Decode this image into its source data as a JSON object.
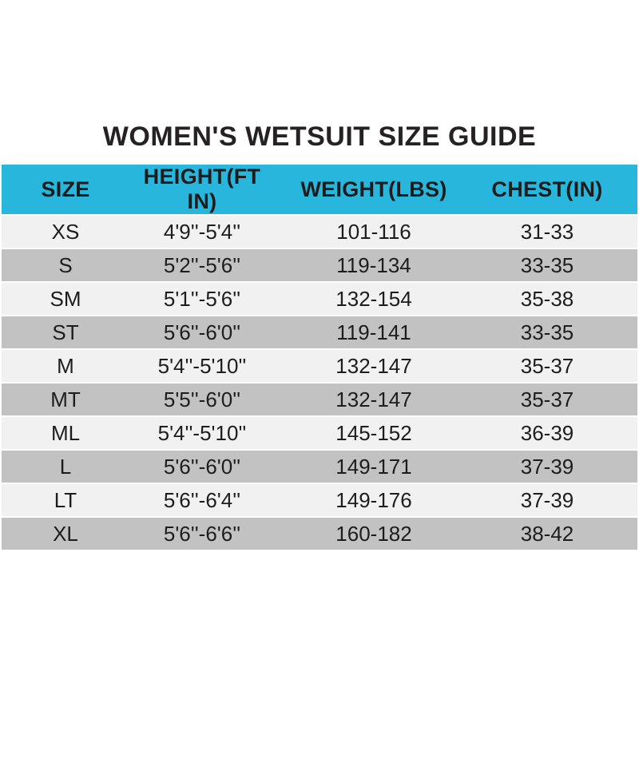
{
  "title": "WOMEN'S WETSUIT SIZE GUIDE",
  "colors": {
    "header_bg": "#29B6DC",
    "row_light": "#F1F1F1",
    "row_dark": "#C2C2C3",
    "text": "#1d1d1d",
    "page_bg": "#ffffff"
  },
  "table": {
    "columns": [
      "SIZE",
      "HEIGHT(FT IN)",
      "WEIGHT(LBS)",
      "CHEST(IN)"
    ],
    "rows": [
      {
        "size": "XS",
        "height": "4'9''-5'4''",
        "weight": "101-116",
        "chest": "31-33"
      },
      {
        "size": "S",
        "height": "5'2''-5'6''",
        "weight": "119-134",
        "chest": "33-35"
      },
      {
        "size": "SM",
        "height": "5'1''-5'6''",
        "weight": "132-154",
        "chest": "35-38"
      },
      {
        "size": "ST",
        "height": "5'6''-6'0''",
        "weight": "119-141",
        "chest": "33-35"
      },
      {
        "size": "M",
        "height": "5'4''-5'10''",
        "weight": "132-147",
        "chest": "35-37"
      },
      {
        "size": "MT",
        "height": "5'5''-6'0''",
        "weight": "132-147",
        "chest": "35-37"
      },
      {
        "size": "ML",
        "height": "5'4''-5'10''",
        "weight": "145-152",
        "chest": "36-39"
      },
      {
        "size": "L",
        "height": "5'6''-6'0''",
        "weight": "149-171",
        "chest": "37-39"
      },
      {
        "size": "LT",
        "height": "5'6''-6'4''",
        "weight": "149-176",
        "chest": "37-39"
      },
      {
        "size": "XL",
        "height": "5'6''-6'6''",
        "weight": "160-182",
        "chest": "38-42"
      }
    ]
  },
  "chart_data": {
    "type": "table",
    "title": "WOMEN'S WETSUIT SIZE GUIDE",
    "columns": [
      "SIZE",
      "HEIGHT(FT IN)",
      "WEIGHT(LBS)",
      "CHEST(IN)"
    ],
    "rows": [
      [
        "XS",
        "4'9''-5'4''",
        "101-116",
        "31-33"
      ],
      [
        "S",
        "5'2''-5'6''",
        "119-134",
        "33-35"
      ],
      [
        "SM",
        "5'1''-5'6''",
        "132-154",
        "35-38"
      ],
      [
        "ST",
        "5'6''-6'0''",
        "119-141",
        "33-35"
      ],
      [
        "M",
        "5'4''-5'10''",
        "132-147",
        "35-37"
      ],
      [
        "MT",
        "5'5''-6'0''",
        "132-147",
        "35-37"
      ],
      [
        "ML",
        "5'4''-5'10''",
        "145-152",
        "36-39"
      ],
      [
        "L",
        "5'6''-6'0''",
        "149-171",
        "37-39"
      ],
      [
        "LT",
        "5'6''-6'4''",
        "149-176",
        "37-39"
      ],
      [
        "XL",
        "5'6''-6'6''",
        "160-182",
        "38-42"
      ]
    ],
    "layout": {
      "header_background": "#29B6DC",
      "alternating_rows": [
        "#F1F1F1",
        "#C2C2C3"
      ],
      "grid": false
    }
  }
}
